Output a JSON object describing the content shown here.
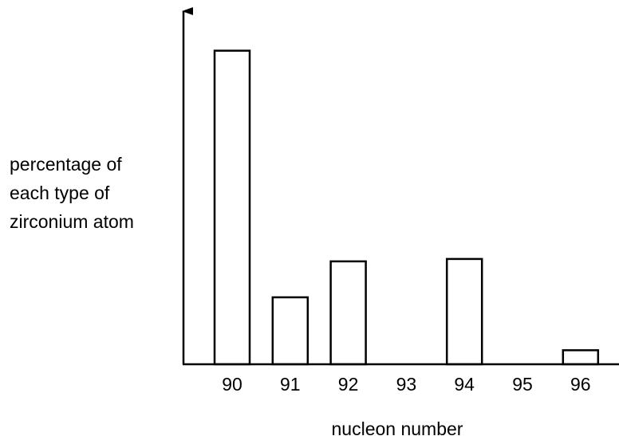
{
  "chart_data": {
    "type": "bar",
    "title": "",
    "xlabel": "nucleon number",
    "ylabel_lines": [
      "percentage of",
      "each type of",
      "zirconium atom"
    ],
    "categories": [
      "90",
      "91",
      "92",
      "93",
      "94",
      "95",
      "96"
    ],
    "values": [
      51.5,
      11.0,
      16.9,
      0,
      17.3,
      0,
      2.3
    ],
    "ylim": [
      0,
      58
    ],
    "grid": false,
    "legend": "none",
    "bar_fill": "#ffffff",
    "bar_stroke": "#000000"
  }
}
